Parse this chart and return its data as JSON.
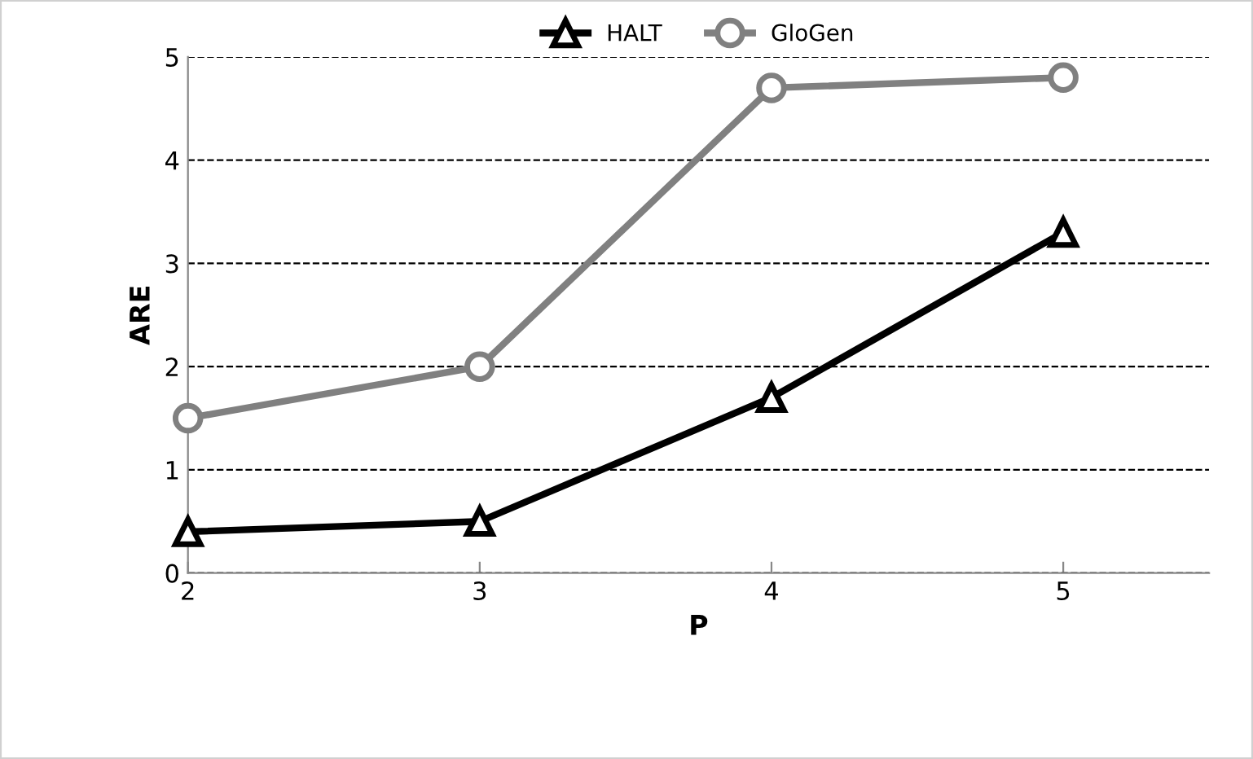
{
  "chart_data": {
    "type": "line",
    "xlabel": "P",
    "ylabel": "ARE",
    "x": [
      2,
      3,
      4,
      5
    ],
    "series": [
      {
        "name": "HALT",
        "color": "#000000",
        "marker": "triangle",
        "values": [
          0.4,
          0.5,
          1.7,
          3.3
        ]
      },
      {
        "name": "GloGen",
        "color": "#808080",
        "marker": "circle",
        "values": [
          1.5,
          2.0,
          4.7,
          4.8
        ]
      }
    ],
    "xlim": [
      2,
      5.5
    ],
    "xticks": [
      2,
      3,
      4,
      5
    ],
    "ylim": [
      0,
      5
    ],
    "yticks": [
      0,
      1,
      2,
      3,
      4,
      5
    ],
    "grid": "y",
    "legend": "top",
    "line_style": "solid"
  }
}
